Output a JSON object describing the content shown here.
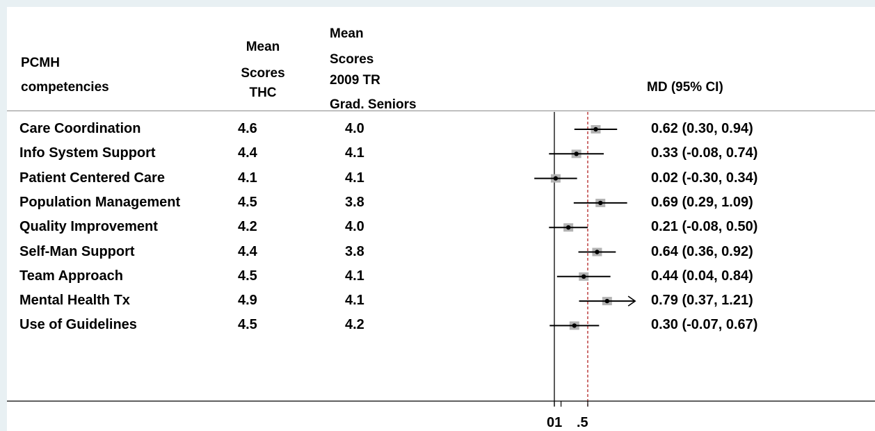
{
  "headers": {
    "competency": [
      "PCMH",
      "competencies"
    ],
    "thc": [
      "Mean",
      "Scores",
      "THC"
    ],
    "tr": [
      "Mean",
      "Scores",
      "2009 TR",
      "Grad. Seniors"
    ],
    "md": "MD (95% CI)"
  },
  "axis_ticks": [
    "01",
    ".5"
  ],
  "chart_data": {
    "type": "forest",
    "null_line": 0,
    "overall_line": 0.5,
    "xlim": [
      -0.3,
      1.2
    ],
    "xticks": [
      0,
      0.1,
      0.5
    ],
    "rows": [
      {
        "label": "Care Coordination",
        "thc": "4.6",
        "tr": "4.0",
        "md": 0.62,
        "lo": 0.3,
        "hi": 0.94,
        "text": "0.62 (0.30, 0.94)"
      },
      {
        "label": "Info System Support",
        "thc": "4.4",
        "tr": "4.1",
        "md": 0.33,
        "lo": -0.08,
        "hi": 0.74,
        "text": "0.33 (-0.08, 0.74)"
      },
      {
        "label": "Patient Centered Care",
        "thc": "4.1",
        "tr": "4.1",
        "md": 0.02,
        "lo": -0.3,
        "hi": 0.34,
        "text": "0.02 (-0.30, 0.34)"
      },
      {
        "label": "Population Management",
        "thc": "4.5",
        "tr": "3.8",
        "md": 0.69,
        "lo": 0.29,
        "hi": 1.09,
        "text": "0.69 (0.29, 1.09)"
      },
      {
        "label": "Quality Improvement",
        "thc": "4.2",
        "tr": "4.0",
        "md": 0.21,
        "lo": -0.08,
        "hi": 0.5,
        "text": "0.21 (-0.08, 0.50)"
      },
      {
        "label": "Self-Man Support",
        "thc": "4.4",
        "tr": "3.8",
        "md": 0.64,
        "lo": 0.36,
        "hi": 0.92,
        "text": "0.64 (0.36, 0.92)"
      },
      {
        "label": "Team Approach",
        "thc": "4.5",
        "tr": "4.1",
        "md": 0.44,
        "lo": 0.04,
        "hi": 0.84,
        "text": "0.44 (0.04, 0.84)"
      },
      {
        "label": "Mental Health Tx",
        "thc": "4.9",
        "tr": "4.1",
        "md": 0.79,
        "lo": 0.37,
        "hi": 1.21,
        "text": "0.79 (0.37, 1.21)",
        "truncated": true
      },
      {
        "label": "Use of Guidelines",
        "thc": "4.5",
        "tr": "4.2",
        "md": 0.3,
        "lo": -0.07,
        "hi": 0.67,
        "text": "0.30 (-0.07, 0.67)"
      }
    ],
    "colors": {
      "ci_line": "#000000",
      "weight_box": "#b3b3b3",
      "point": "#000000",
      "null_line": "#000000",
      "overall_line": "#b22222",
      "separator": "#888888"
    }
  }
}
